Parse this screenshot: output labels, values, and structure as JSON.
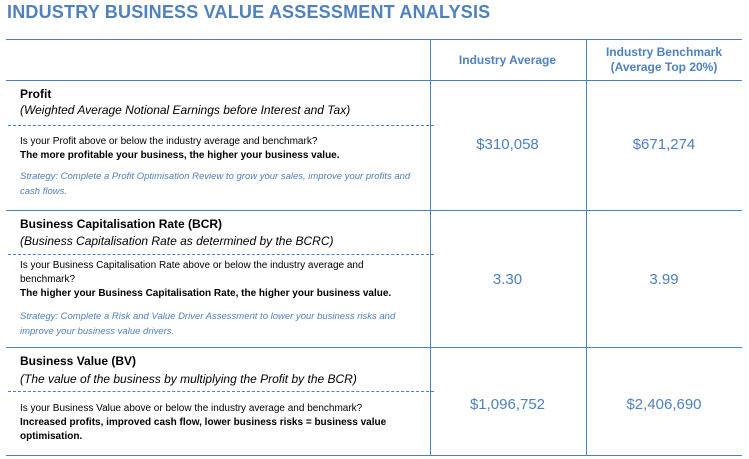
{
  "title": "INDUSTRY BUSINESS VALUE ASSESSMENT ANALYSIS",
  "columns": {
    "average": "Industry Average",
    "benchmark_line1": "Industry Benchmark",
    "benchmark_line2": "(Average Top 20%)"
  },
  "rows": [
    {
      "title": "Profit",
      "subtitle": "(Weighted Average Notional Earnings before Interest and Tax)",
      "question": "Is your Profit above or below the industry average and benchmark?",
      "emphasis": "The more profitable your business, the higher your business value.",
      "strategy": "Strategy: Complete a Profit Optimisation Review to grow your sales, improve your profits and cash flows.",
      "average": "$310,058",
      "benchmark": "$671,274"
    },
    {
      "title": "Business Capitalisation Rate (BCR)",
      "subtitle": "(Business Capitalisation Rate as determined by the BCRC)",
      "question": "Is your Business Capitalisation Rate above or below the industry average and benchmark?",
      "emphasis": "The higher your Business Capitalisation Rate, the higher your business value.",
      "strategy": "Strategy: Complete a Risk and Value Driver Assessment to lower your business risks and improve your business value drivers.",
      "average": "3.30",
      "benchmark": "3.99"
    },
    {
      "title": "Business Value (BV)",
      "subtitle": "(The value of the business by multiplying the Profit by the BCR)",
      "question": "Is your Business Value above or below the industry average and benchmark?",
      "emphasis": "Increased profits, improved cash flow, lower business risks = business value optimisation.",
      "average": "$1,096,752",
      "benchmark": "$2,406,690"
    }
  ]
}
